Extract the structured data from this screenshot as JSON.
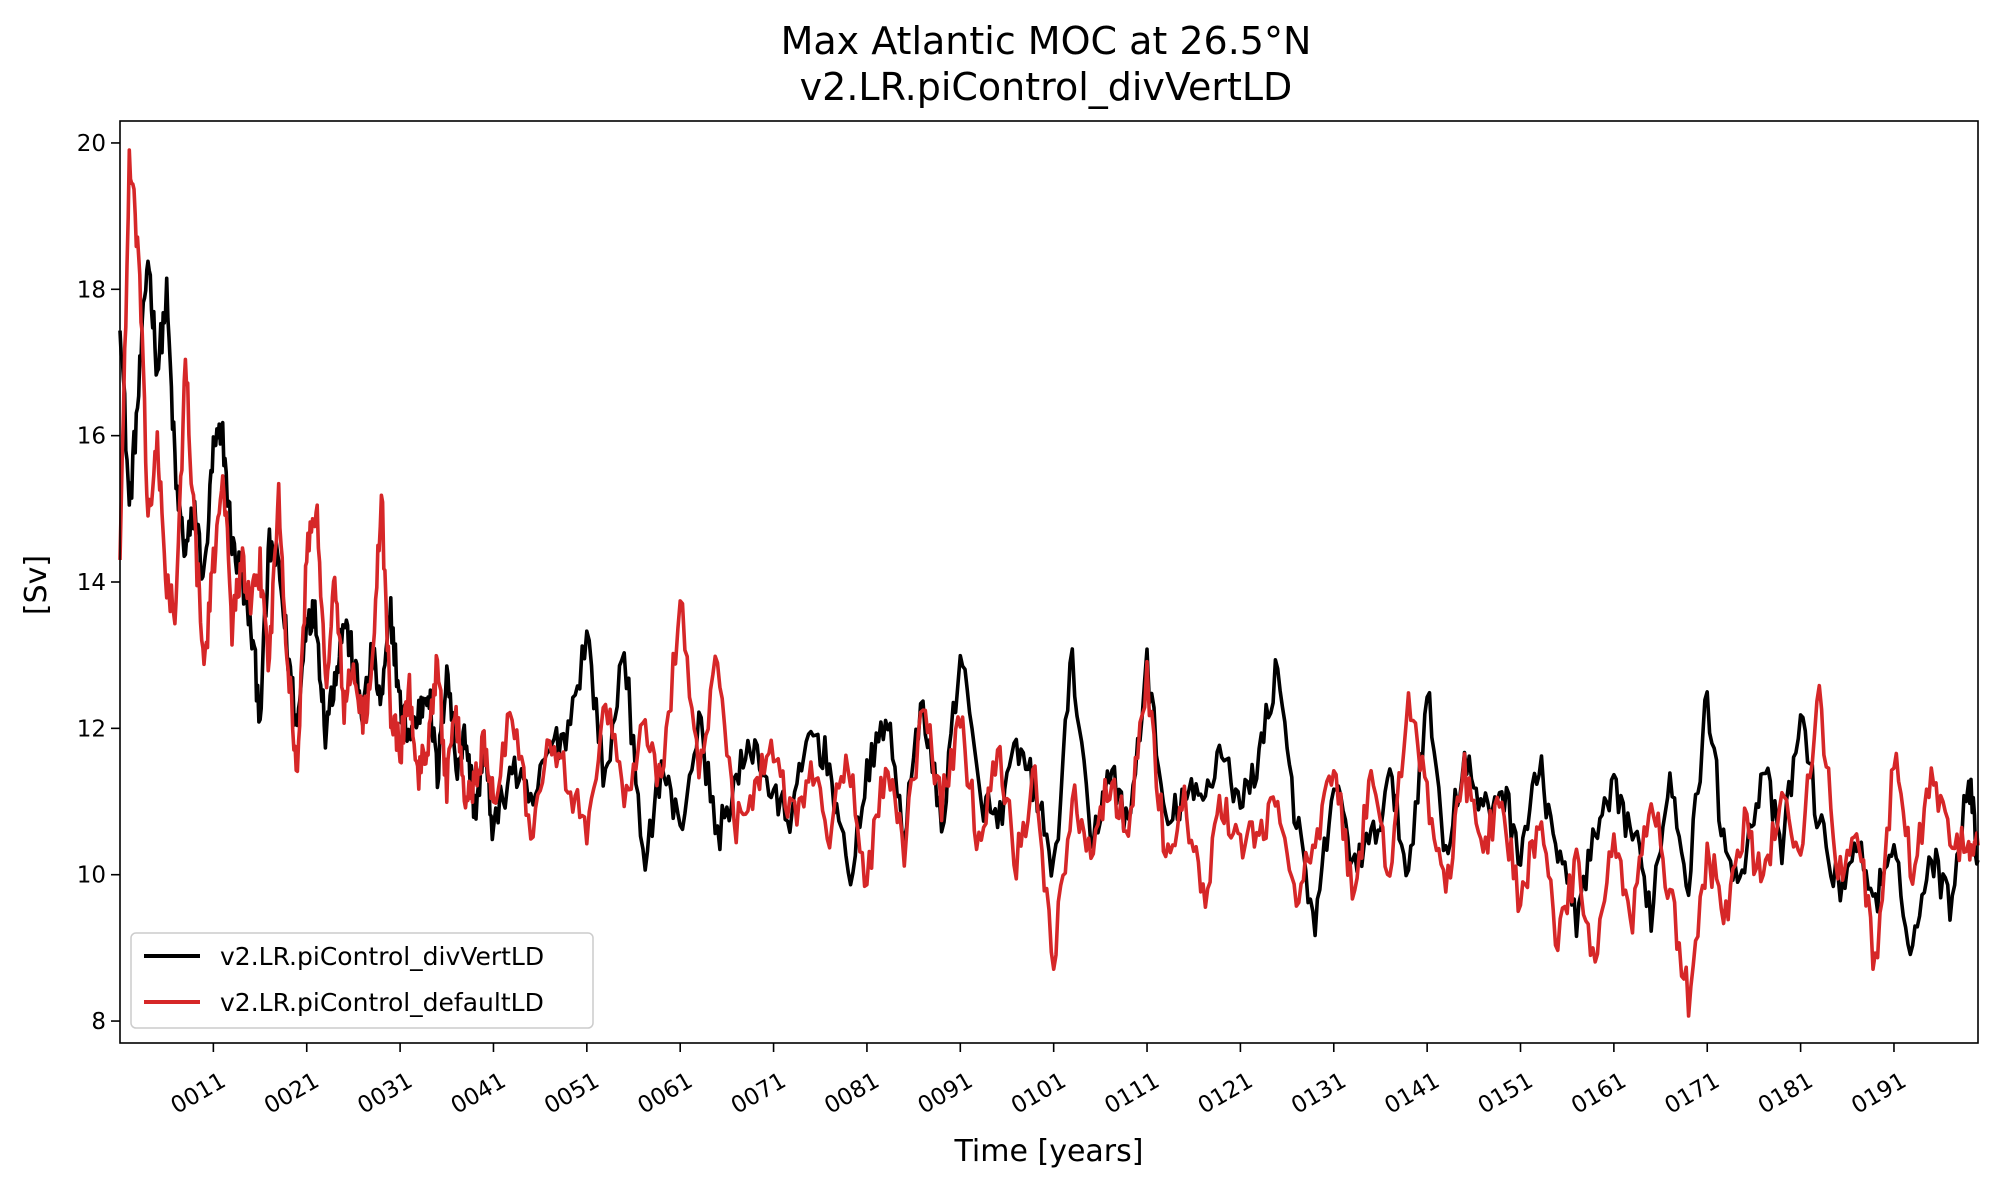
{
  "chart_data": {
    "type": "line",
    "title": "Max Atlantic MOC at 26.5°N",
    "subtitle": "v2.LR.piControl_divVertLD",
    "xlabel": "Time [years]",
    "ylabel": "[Sv]",
    "xlim": [
      1,
      200
    ],
    "ylim": [
      7.7,
      20.3
    ],
    "x_ticks": [
      11,
      21,
      31,
      41,
      51,
      61,
      71,
      81,
      91,
      101,
      111,
      121,
      131,
      141,
      151,
      161,
      171,
      181,
      191
    ],
    "x_tick_labels": [
      "0011",
      "0021",
      "0031",
      "0041",
      "0051",
      "0061",
      "0071",
      "0081",
      "0091",
      "0101",
      "0111",
      "0121",
      "0131",
      "0141",
      "0151",
      "0161",
      "0171",
      "0181",
      "0191"
    ],
    "y_ticks": [
      8,
      10,
      12,
      14,
      16,
      18,
      20
    ],
    "y_tick_labels": [
      "8",
      "10",
      "12",
      "14",
      "16",
      "18",
      "20"
    ],
    "legend_position": "lower-left",
    "series": [
      {
        "name": "v2.LR.piControl_divVertLD",
        "color": "#000000",
        "anchors_x": [
          1,
          2,
          3,
          4,
          5,
          6,
          7,
          8,
          9,
          10,
          11,
          12,
          13,
          14,
          15,
          16,
          17,
          18,
          19,
          20,
          21,
          22,
          23,
          24,
          25,
          26,
          27,
          28,
          29,
          30,
          31,
          32,
          33,
          34,
          35,
          36,
          37,
          38,
          39,
          40,
          41,
          43,
          45,
          47,
          49,
          51,
          53,
          55,
          57,
          59,
          61,
          63,
          65,
          67,
          69,
          71,
          73,
          75,
          77,
          79,
          81,
          83,
          85,
          87,
          89,
          91,
          93,
          95,
          97,
          99,
          101,
          103,
          105,
          107,
          109,
          111,
          113,
          115,
          117,
          119,
          121,
          123,
          125,
          127,
          129,
          131,
          133,
          135,
          137,
          139,
          141,
          143,
          145,
          147,
          149,
          151,
          153,
          155,
          157,
          159,
          161,
          163,
          165,
          167,
          169,
          171,
          173,
          175,
          177,
          179,
          181,
          183,
          185,
          187,
          189,
          191,
          193,
          195,
          197,
          199,
          200
        ],
        "anchors_y": [
          17.7,
          15.0,
          16.6,
          18.5,
          16.9,
          17.9,
          15.3,
          14.4,
          15.0,
          14.0,
          15.8,
          16.0,
          14.5,
          14.1,
          13.4,
          12.2,
          14.5,
          14.2,
          13.0,
          12.0,
          13.6,
          13.5,
          12.0,
          12.7,
          13.5,
          12.9,
          12.2,
          13.0,
          12.3,
          13.6,
          12.3,
          11.9,
          12.2,
          12.6,
          11.3,
          12.9,
          11.5,
          11.9,
          10.9,
          11.6,
          10.6,
          11.5,
          10.9,
          11.7,
          12.0,
          13.3,
          11.2,
          13.2,
          10.1,
          11.5,
          10.6,
          12.1,
          10.5,
          11.3,
          11.8,
          11.0,
          10.8,
          12.0,
          11.5,
          9.9,
          11.3,
          12.2,
          10.6,
          12.4,
          10.6,
          13.1,
          11.1,
          10.7,
          11.7,
          11.2,
          10.0,
          13.0,
          10.3,
          11.5,
          10.6,
          12.9,
          10.6,
          11.1,
          11.0,
          11.8,
          10.9,
          11.6,
          12.9,
          10.7,
          9.2,
          11.3,
          10.2,
          10.4,
          11.3,
          10.0,
          12.5,
          10.3,
          11.6,
          10.8,
          11.2,
          10.3,
          11.5,
          10.3,
          9.4,
          10.5,
          11.1,
          10.6,
          9.5,
          11.4,
          9.9,
          12.5,
          10.1,
          10.2,
          11.5,
          10.3,
          12.2,
          10.7,
          9.8,
          10.4,
          9.7,
          10.2,
          9.0,
          10.3,
          9.6,
          11.4,
          10.2
        ]
      },
      {
        "name": "v2.LR.piControl_defaultLD",
        "color": "#d62728",
        "anchors_x": [
          1,
          2,
          3,
          4,
          5,
          6,
          7,
          8,
          9,
          10,
          11,
          12,
          13,
          14,
          15,
          16,
          17,
          18,
          19,
          20,
          21,
          22,
          23,
          24,
          25,
          26,
          27,
          28,
          29,
          30,
          31,
          32,
          33,
          34,
          35,
          36,
          37,
          38,
          39,
          40,
          41,
          43,
          45,
          47,
          49,
          51,
          53,
          55,
          57,
          59,
          61,
          63,
          65,
          67,
          69,
          71,
          73,
          75,
          77,
          79,
          81,
          83,
          85,
          87,
          89,
          91,
          93,
          95,
          97,
          99,
          101,
          103,
          105,
          107,
          109,
          111,
          113,
          115,
          117,
          119,
          121,
          123,
          125,
          127,
          129,
          131,
          133,
          135,
          137,
          139,
          141,
          143,
          145,
          147,
          149,
          151,
          153,
          155,
          157,
          159,
          161,
          163,
          165,
          167,
          169,
          171,
          173,
          175,
          177,
          179,
          181,
          183,
          185,
          187,
          189,
          191,
          193,
          195,
          197,
          199,
          200
        ],
        "anchors_y": [
          14.4,
          19.7,
          18.5,
          14.9,
          15.8,
          14.0,
          13.5,
          17.1,
          14.7,
          12.8,
          14.2,
          15.6,
          13.4,
          14.3,
          13.6,
          14.2,
          12.9,
          15.3,
          12.8,
          11.4,
          14.4,
          15.1,
          12.6,
          14.0,
          12.3,
          12.8,
          12.1,
          12.7,
          15.2,
          12.2,
          11.7,
          12.5,
          11.3,
          11.9,
          12.9,
          11.2,
          12.2,
          11.0,
          11.3,
          11.8,
          11.1,
          12.3,
          10.6,
          12.0,
          11.3,
          10.5,
          12.5,
          11.0,
          12.0,
          11.2,
          13.8,
          11.4,
          12.9,
          10.7,
          11.2,
          11.8,
          10.8,
          11.4,
          10.6,
          11.6,
          9.9,
          11.5,
          10.3,
          12.3,
          11.0,
          12.1,
          10.4,
          11.8,
          10.2,
          11.3,
          8.8,
          11.1,
          10.4,
          11.3,
          10.6,
          12.7,
          10.2,
          11.0,
          9.6,
          11.0,
          10.4,
          10.6,
          10.9,
          9.8,
          10.3,
          11.5,
          9.8,
          11.2,
          10.0,
          12.5,
          11.0,
          9.8,
          11.4,
          10.4,
          11.0,
          9.6,
          10.8,
          9.0,
          10.2,
          8.7,
          10.5,
          9.4,
          11.1,
          9.7,
          8.3,
          10.3,
          9.5,
          10.7,
          9.8,
          11.2,
          10.3,
          12.5,
          9.9,
          10.8,
          8.7,
          11.6,
          10.0,
          11.3,
          10.6,
          10.3,
          10.4
        ]
      }
    ]
  }
}
